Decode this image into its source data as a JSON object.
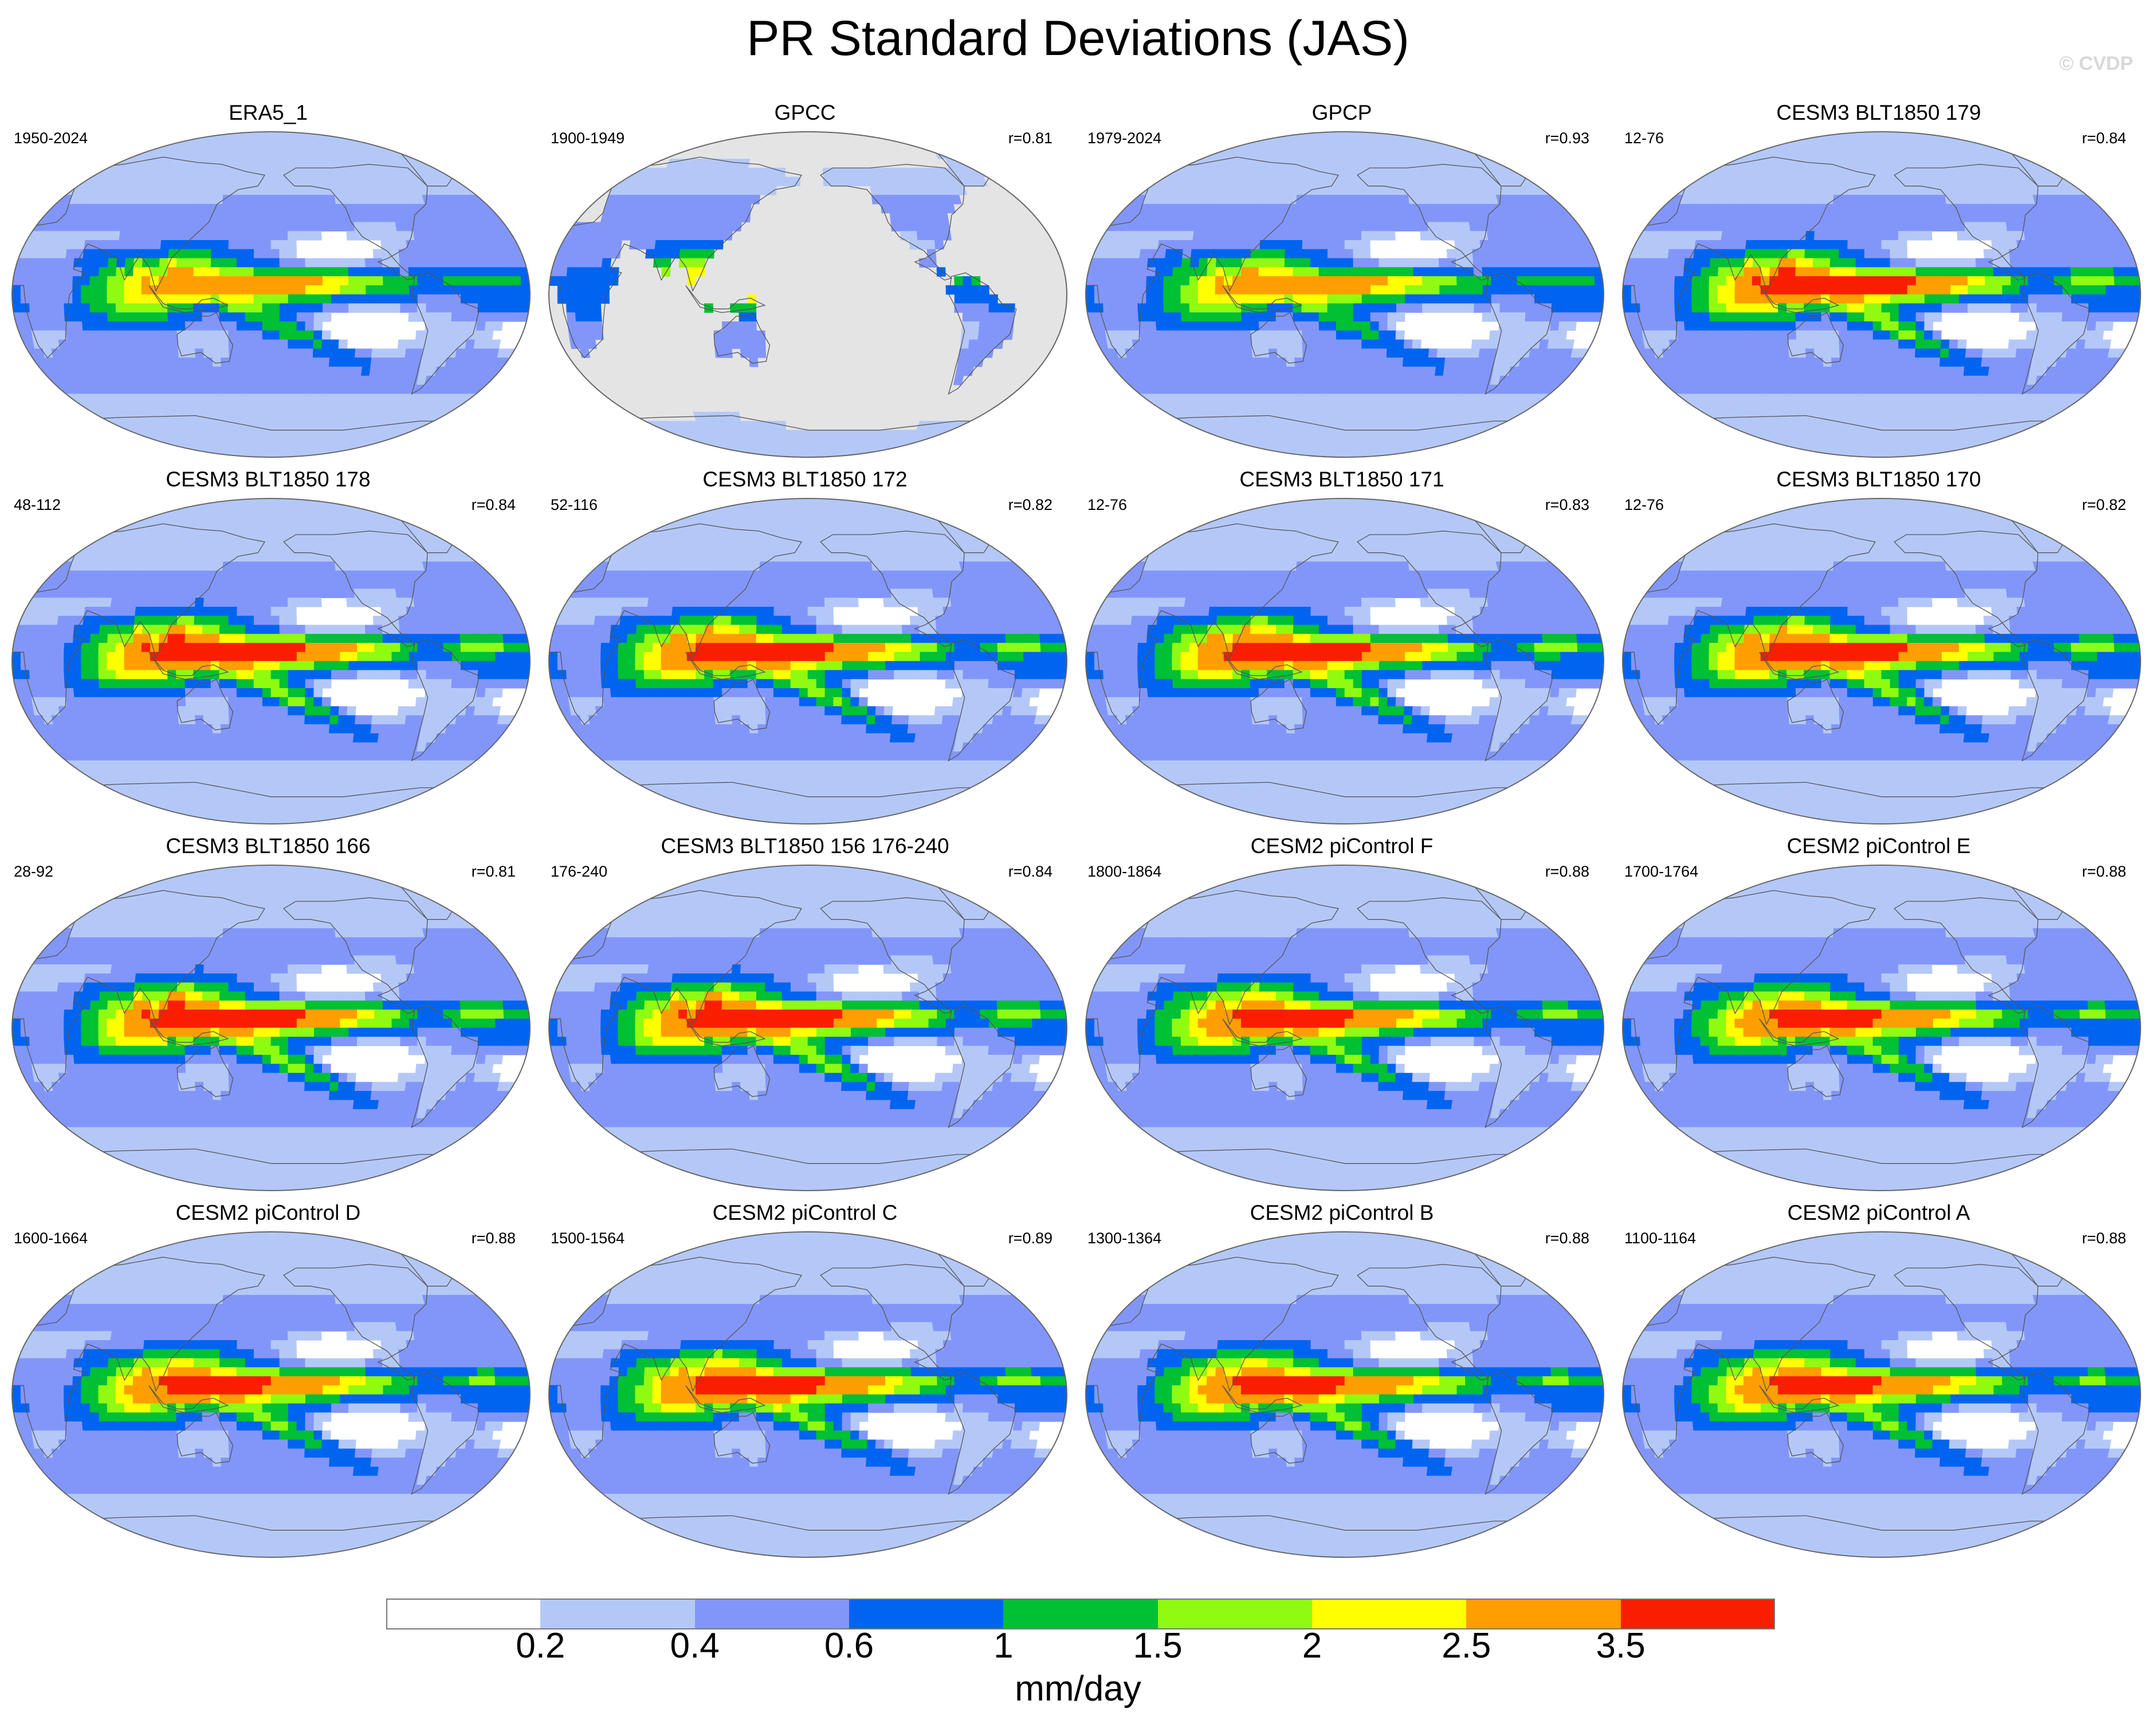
{
  "title": "PR Standard Deviations (JAS)",
  "copyright": "© CVDP",
  "colorbar": {
    "units": "mm/day",
    "tick_labels": [
      "0.2",
      "0.4",
      "0.6",
      "1",
      "1.5",
      "2",
      "2.5",
      "3.5"
    ],
    "colors": [
      "#ffffff",
      "#b4c8f8",
      "#8296fa",
      "#0064f0",
      "#00c034",
      "#90fa10",
      "#ffff00",
      "#ff9e00",
      "#fa1e00"
    ],
    "color_names": [
      "white",
      "pale-blue",
      "light-blue",
      "blue",
      "green",
      "lime",
      "yellow",
      "orange",
      "red"
    ]
  },
  "ocean_no_data_color": "#e4e4e4",
  "panels": [
    {
      "title": "ERA5_1",
      "period": "1950-2024",
      "corr": "",
      "intensity": 0.75,
      "mode": "full"
    },
    {
      "title": "GPCC",
      "period": "1900-1949",
      "corr": "r=0.81",
      "intensity": 0.6,
      "mode": "land"
    },
    {
      "title": "GPCP",
      "period": "1979-2024",
      "corr": "r=0.93",
      "intensity": 0.7,
      "mode": "full"
    },
    {
      "title": "CESM3 BLT1850 179",
      "period": "12-76",
      "corr": "r=0.84",
      "intensity": 1.05,
      "mode": "full"
    },
    {
      "title": "CESM3 BLT1850 178",
      "period": "48-112",
      "corr": "r=0.84",
      "intensity": 1.05,
      "mode": "full"
    },
    {
      "title": "CESM3 BLT1850 172",
      "period": "52-116",
      "corr": "r=0.82",
      "intensity": 1.0,
      "mode": "full"
    },
    {
      "title": "CESM3 BLT1850 171",
      "period": "12-76",
      "corr": "r=0.83",
      "intensity": 1.0,
      "mode": "full"
    },
    {
      "title": "CESM3 BLT1850 170",
      "period": "12-76",
      "corr": "r=0.82",
      "intensity": 1.0,
      "mode": "full"
    },
    {
      "title": "CESM3 BLT1850 166",
      "period": "28-92",
      "corr": "r=0.81",
      "intensity": 1.05,
      "mode": "full"
    },
    {
      "title": "CESM3 BLT1850 156 176-240",
      "period": "176-240",
      "corr": "r=0.84",
      "intensity": 1.05,
      "mode": "full"
    },
    {
      "title": "CESM2 piControl F",
      "period": "1800-1864",
      "corr": "r=0.88",
      "intensity": 0.92,
      "mode": "full"
    },
    {
      "title": "CESM2 piControl E",
      "period": "1700-1764",
      "corr": "r=0.88",
      "intensity": 0.9,
      "mode": "full"
    },
    {
      "title": "CESM2 piControl D",
      "period": "1600-1664",
      "corr": "r=0.88",
      "intensity": 0.9,
      "mode": "full"
    },
    {
      "title": "CESM2 piControl C",
      "period": "1500-1564",
      "corr": "r=0.89",
      "intensity": 0.95,
      "mode": "full"
    },
    {
      "title": "CESM2 piControl B",
      "period": "1300-1364",
      "corr": "r=0.88",
      "intensity": 0.9,
      "mode": "full"
    },
    {
      "title": "CESM2 piControl A",
      "period": "1100-1164",
      "corr": "r=0.88",
      "intensity": 0.9,
      "mode": "full"
    }
  ]
}
